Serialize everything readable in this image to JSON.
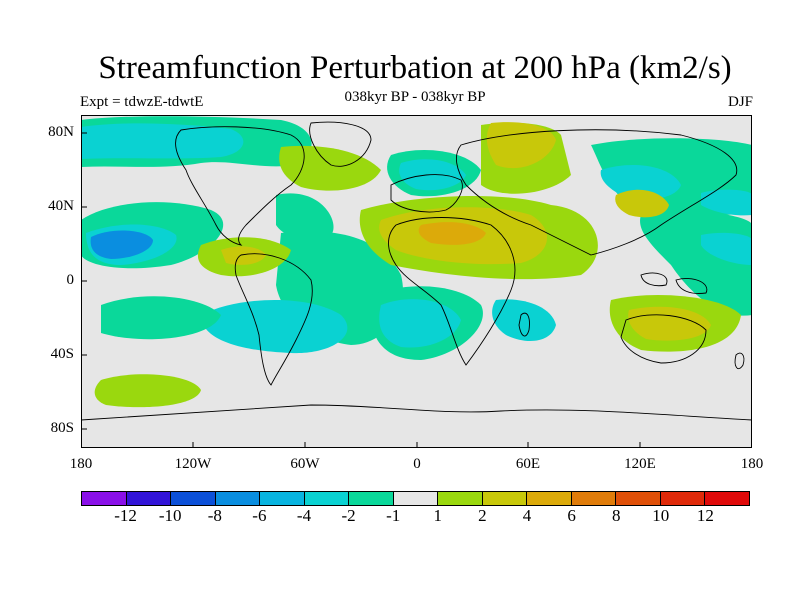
{
  "title": "Streamfunction Perturbation at 200 hPa (km2/s)",
  "subtitle": "038kyr BP - 038kyr BP",
  "experiment": "Expt = tdwzE-tdwtE",
  "season": "DJF",
  "lat_ticks": [
    "80N",
    "40N",
    "0",
    "40S",
    "80S"
  ],
  "lon_ticks": [
    "180",
    "120W",
    "60W",
    "0",
    "60E",
    "120E",
    "180"
  ],
  "colorbar": {
    "labels": [
      "-12",
      "-10",
      "-8",
      "-6",
      "-4",
      "-2",
      "-1",
      "1",
      "2",
      "4",
      "6",
      "8",
      "10",
      "12"
    ],
    "colors": [
      "#8a10e8",
      "#3214d8",
      "#0c50d8",
      "#0a8ee0",
      "#08b4e0",
      "#0ad2d2",
      "#0ad89a",
      "#e6e6e6",
      "#9ad80e",
      "#c8c80a",
      "#dcaa0a",
      "#e07c0a",
      "#e05008",
      "#e02a0a",
      "#e00a0a"
    ]
  },
  "map_colors": {
    "background": "#e6e6e6",
    "neg1": "#0ad89a",
    "neg2": "#0ad2d2",
    "neg3": "#08b4e0",
    "neg4": "#0a8ee0",
    "pos1": "#9ad80e",
    "pos2": "#c8c80a",
    "pos3": "#dcaa0a"
  }
}
